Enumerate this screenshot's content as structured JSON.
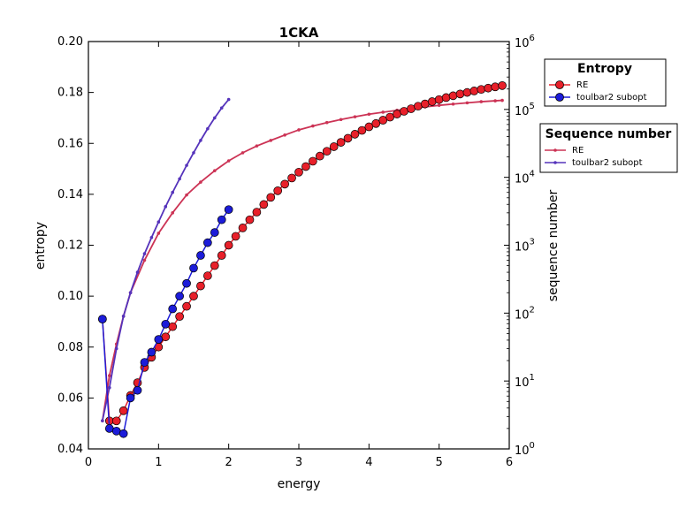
{
  "chart_data": {
    "type": "line",
    "title": "1CKA",
    "xlabel": "energy",
    "ylabel_left": "entropy",
    "ylabel_right": "sequence number",
    "xlim": [
      0,
      6
    ],
    "ylim_left": [
      0.04,
      0.2
    ],
    "ylim_right": [
      1,
      1000000
    ],
    "right_scale": "log",
    "x_ticks": [
      "0",
      "1",
      "2",
      "3",
      "4",
      "5",
      "6"
    ],
    "y_ticks_left": [
      "0.04",
      "0.06",
      "0.08",
      "0.10",
      "0.12",
      "0.14",
      "0.16",
      "0.18",
      "0.20"
    ],
    "y_ticks_right": [
      {
        "base": "10",
        "exp": "0"
      },
      {
        "base": "10",
        "exp": "1"
      },
      {
        "base": "10",
        "exp": "2"
      },
      {
        "base": "10",
        "exp": "3"
      },
      {
        "base": "10",
        "exp": "4"
      },
      {
        "base": "10",
        "exp": "5"
      },
      {
        "base": "10",
        "exp": "6"
      }
    ],
    "grid": false,
    "legends": [
      {
        "title": "Entropy",
        "placement": "top-right",
        "entries": [
          "RE",
          "toulbar2 subopt"
        ]
      },
      {
        "title": "Sequence number",
        "placement": "upper-right",
        "entries": [
          "RE",
          "toulbar2 subopt"
        ]
      }
    ],
    "colors": {
      "re": "#e8202a",
      "toulbar": "#1c1cd9",
      "re_seq": "#cc3355",
      "toulbar_seq": "#5533bb"
    },
    "entropy_series": [
      {
        "name": "RE",
        "axis": "left",
        "x": [
          0.2,
          0.3,
          0.4,
          0.5,
          0.6,
          0.7,
          0.8,
          0.9,
          1.0,
          1.1,
          1.2,
          1.3,
          1.4,
          1.5,
          1.6,
          1.7,
          1.8,
          1.9,
          2.0,
          2.1,
          2.2,
          2.3,
          2.4,
          2.5,
          2.6,
          2.7,
          2.8,
          2.9,
          3.0,
          3.1,
          3.2,
          3.3,
          3.4,
          3.5,
          3.6,
          3.7,
          3.8,
          3.9,
          4.0,
          4.1,
          4.2,
          4.3,
          4.4,
          4.5,
          4.6,
          4.7,
          4.8,
          4.9,
          5.0,
          5.1,
          5.2,
          5.3,
          5.4,
          5.5,
          5.6,
          5.7,
          5.8,
          5.9
        ],
        "values": [
          0.091,
          0.051,
          0.051,
          0.055,
          0.061,
          0.066,
          0.072,
          0.076,
          0.08,
          0.084,
          0.088,
          0.092,
          0.096,
          0.1,
          0.104,
          0.108,
          0.112,
          0.116,
          0.12,
          0.1235,
          0.1268,
          0.13,
          0.133,
          0.136,
          0.1388,
          0.1414,
          0.144,
          0.1464,
          0.1487,
          0.1509,
          0.153,
          0.155,
          0.1569,
          0.1587,
          0.1604,
          0.162,
          0.1636,
          0.1651,
          0.1665,
          0.1678,
          0.1691,
          0.1703,
          0.1715,
          0.1726,
          0.1736,
          0.1746,
          0.1755,
          0.1764,
          0.1772,
          0.178,
          0.1787,
          0.1794,
          0.18,
          0.1806,
          0.1812,
          0.1817,
          0.1822,
          0.1827
        ]
      },
      {
        "name": "toulbar2 subopt",
        "axis": "left",
        "x": [
          0.2,
          0.3,
          0.4,
          0.5,
          0.6,
          0.7,
          0.8,
          0.9,
          1.0,
          1.1,
          1.2,
          1.3,
          1.4,
          1.5,
          1.6,
          1.7,
          1.8,
          1.9,
          2.0
        ],
        "values": [
          0.091,
          0.048,
          0.047,
          0.046,
          0.06,
          0.063,
          0.074,
          0.078,
          0.083,
          0.089,
          0.095,
          0.1,
          0.105,
          0.111,
          0.116,
          0.121,
          0.125,
          0.13,
          0.134
        ]
      }
    ],
    "sequence_series": [
      {
        "name": "RE",
        "axis": "right",
        "x": [
          0.2,
          0.3,
          0.4,
          0.5,
          0.6,
          0.8,
          1.0,
          1.2,
          1.4,
          1.6,
          1.8,
          2.0,
          2.2,
          2.4,
          2.6,
          2.8,
          3.0,
          3.2,
          3.4,
          3.6,
          3.8,
          4.0,
          4.2,
          4.4,
          4.6,
          4.8,
          5.0,
          5.2,
          5.4,
          5.6,
          5.8,
          5.9
        ],
        "values": [
          2.6,
          12,
          35,
          90,
          200,
          600,
          1500,
          3000,
          5500,
          8500,
          12500,
          17500,
          23000,
          29000,
          35000,
          42000,
          50000,
          57000,
          64000,
          71000,
          78000,
          85000,
          91000,
          97000,
          103000,
          109000,
          115000,
          120000,
          125000,
          130000,
          134000,
          136000
        ]
      },
      {
        "name": "toulbar2 subopt",
        "axis": "right",
        "x": [
          0.2,
          0.3,
          0.4,
          0.5,
          0.6,
          0.7,
          0.8,
          0.9,
          1.0,
          1.1,
          1.2,
          1.3,
          1.4,
          1.5,
          1.6,
          1.7,
          1.8,
          1.9,
          2.0
        ],
        "values": [
          2.6,
          8,
          30,
          90,
          200,
          400,
          750,
          1300,
          2200,
          3700,
          6000,
          9500,
          15000,
          23000,
          35000,
          52000,
          75000,
          105000,
          140000
        ]
      }
    ]
  }
}
